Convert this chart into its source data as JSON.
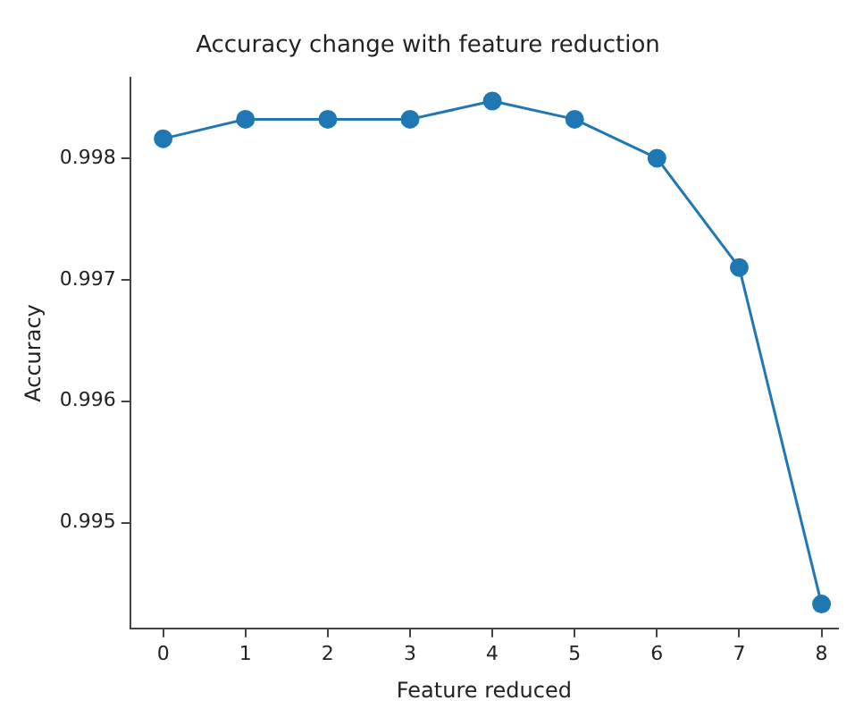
{
  "chart_data": {
    "type": "line",
    "title": "Accuracy change with feature reduction",
    "xlabel": "Feature reduced",
    "ylabel": "Accuracy",
    "x": [
      0,
      1,
      2,
      3,
      4,
      5,
      6,
      7,
      8
    ],
    "series": [
      {
        "color": "#1f77b4",
        "values": [
          0.99816,
          0.99832,
          0.99832,
          0.99832,
          0.99847,
          0.99832,
          0.998,
          0.9971,
          0.99433
        ]
      }
    ],
    "xlim": [
      -0.4,
      8.2
    ],
    "xticks": [
      0,
      1,
      2,
      3,
      4,
      5,
      6,
      7,
      8
    ],
    "ylim": [
      0.99413,
      0.99866
    ],
    "yticks": [
      0.995,
      0.996,
      0.997,
      0.998
    ],
    "marker": "circle",
    "line_style": "solid",
    "grid": false,
    "legend": false
  }
}
